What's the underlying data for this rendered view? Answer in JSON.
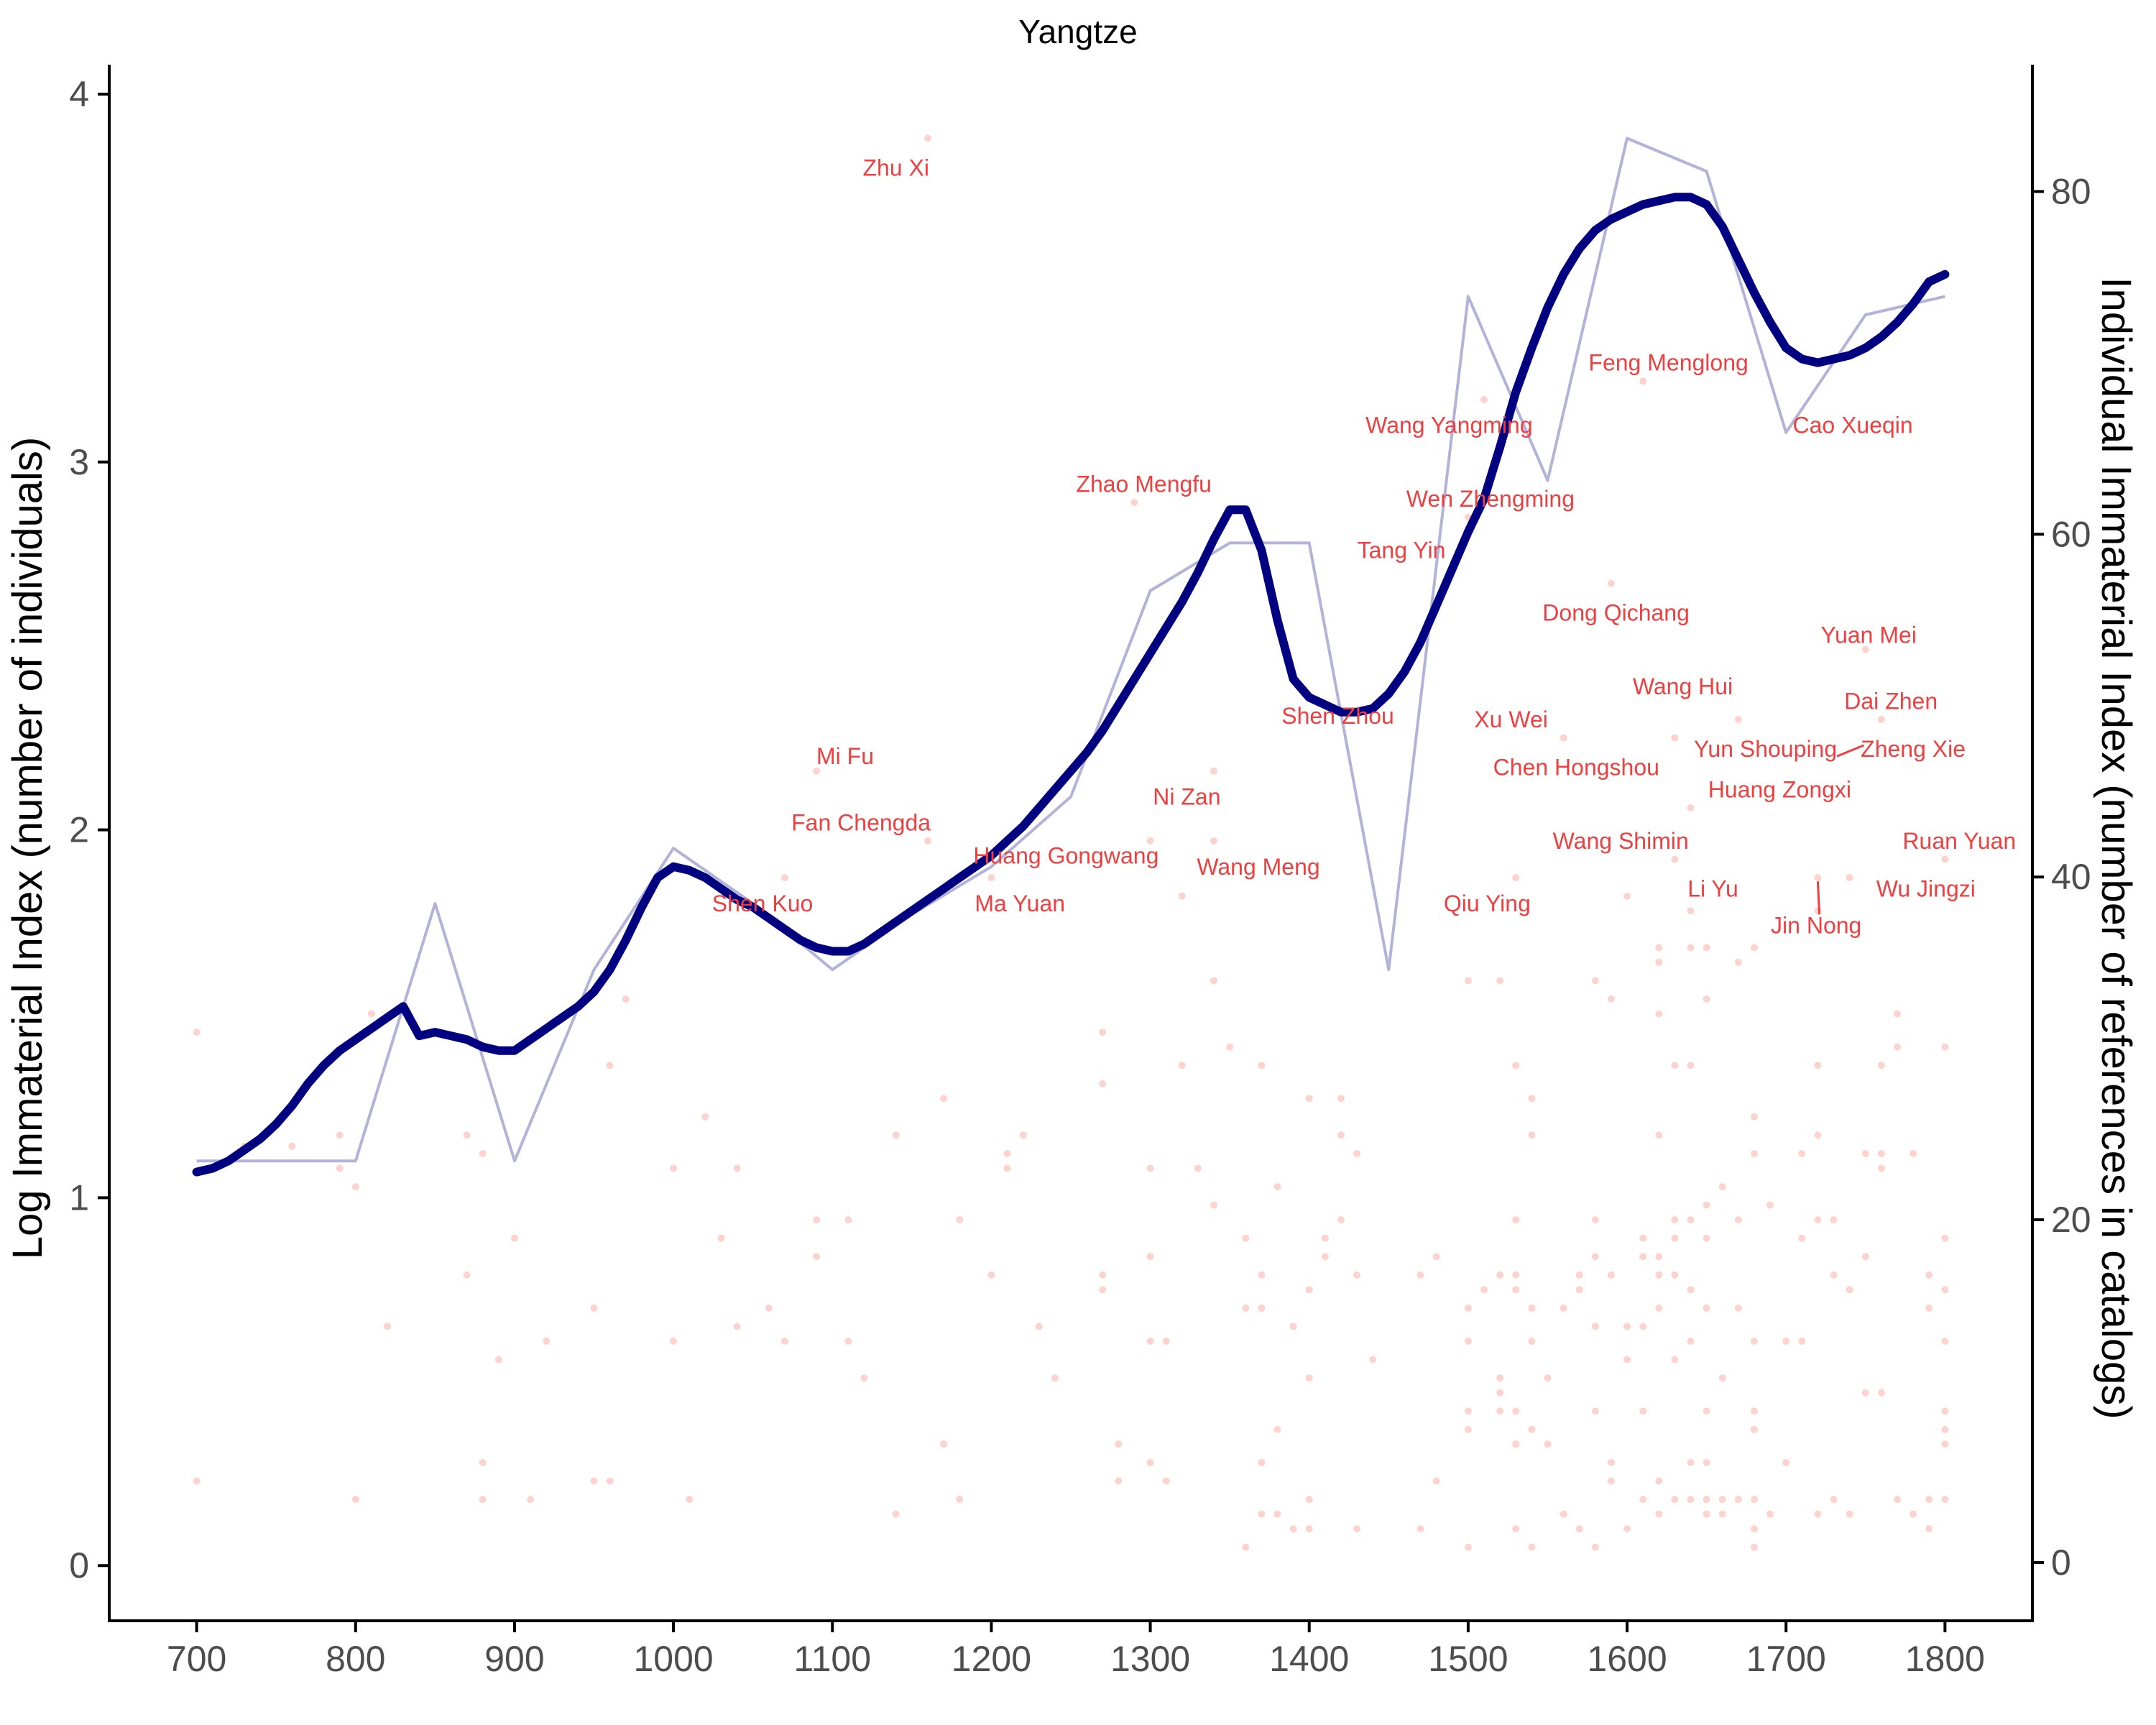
{
  "chart_data": {
    "type": "line",
    "title": "Yangtze",
    "xlabel": "",
    "ylabel": "Log Immaterial Index (number of individuals)",
    "y2label": "Individual Immaterial Index (number of references in catalogs)",
    "xlim": [
      645,
      1855
    ],
    "ylim": [
      -0.15,
      4.08
    ],
    "y2lim": [
      -3.4,
      87.4
    ],
    "x_ticks": [
      700,
      800,
      900,
      1000,
      1100,
      1200,
      1300,
      1400,
      1500,
      1600,
      1700,
      1800
    ],
    "y_ticks": [
      0,
      1,
      2,
      3,
      4
    ],
    "y2_ticks": [
      0,
      20,
      40,
      60,
      80
    ],
    "grid": false,
    "colors": {
      "smooth_line": "#000080",
      "raw_line": "#b3b3d9",
      "points": "#fa8072",
      "labels": "#ee4040",
      "axis": "#000000"
    },
    "series": [
      {
        "name": "",
        "style": "raw",
        "x": [
          700,
          750,
          800,
          850,
          900,
          950,
          1000,
          1050,
          1100,
          1150,
          1200,
          1250,
          1300,
          1350,
          1400,
          1450,
          1500,
          1550,
          1600,
          1650,
          1700,
          1750,
          1800
        ],
        "y": [
          1.1,
          1.1,
          1.1,
          1.8,
          1.1,
          1.62,
          1.95,
          1.8,
          1.62,
          1.77,
          1.9,
          2.09,
          2.65,
          2.78,
          2.78,
          1.62,
          3.45,
          2.95,
          3.88,
          3.79,
          3.08,
          3.4,
          3.45
        ]
      },
      {
        "name": "",
        "style": "smooth",
        "x": [
          700,
          710,
          720,
          730,
          740,
          750,
          760,
          770,
          780,
          790,
          800,
          810,
          820,
          830,
          840,
          850,
          860,
          870,
          880,
          890,
          900,
          910,
          920,
          930,
          940,
          950,
          960,
          970,
          980,
          990,
          1000,
          1010,
          1020,
          1030,
          1040,
          1050,
          1060,
          1070,
          1080,
          1090,
          1100,
          1110,
          1120,
          1130,
          1140,
          1150,
          1160,
          1170,
          1180,
          1190,
          1200,
          1210,
          1220,
          1230,
          1240,
          1250,
          1260,
          1270,
          1280,
          1290,
          1300,
          1310,
          1320,
          1330,
          1340,
          1350,
          1360,
          1370,
          1380,
          1390,
          1400,
          1410,
          1420,
          1430,
          1440,
          1450,
          1460,
          1470,
          1480,
          1490,
          1500,
          1510,
          1520,
          1530,
          1540,
          1550,
          1560,
          1570,
          1580,
          1590,
          1600,
          1610,
          1620,
          1630,
          1640,
          1650,
          1660,
          1670,
          1680,
          1690,
          1700,
          1710,
          1720,
          1730,
          1740,
          1750,
          1760,
          1770,
          1780,
          1790,
          1800
        ],
        "y": [
          1.07,
          1.08,
          1.1,
          1.13,
          1.16,
          1.2,
          1.25,
          1.31,
          1.36,
          1.4,
          1.43,
          1.46,
          1.49,
          1.52,
          1.44,
          1.45,
          1.44,
          1.43,
          1.41,
          1.4,
          1.4,
          1.43,
          1.46,
          1.49,
          1.52,
          1.56,
          1.62,
          1.7,
          1.79,
          1.87,
          1.9,
          1.89,
          1.87,
          1.84,
          1.81,
          1.79,
          1.76,
          1.73,
          1.7,
          1.68,
          1.67,
          1.67,
          1.69,
          1.72,
          1.75,
          1.78,
          1.81,
          1.84,
          1.87,
          1.9,
          1.93,
          1.97,
          2.01,
          2.06,
          2.11,
          2.16,
          2.21,
          2.27,
          2.34,
          2.41,
          2.48,
          2.55,
          2.62,
          2.7,
          2.79,
          2.87,
          2.87,
          2.76,
          2.57,
          2.41,
          2.36,
          2.34,
          2.32,
          2.32,
          2.33,
          2.37,
          2.43,
          2.51,
          2.61,
          2.71,
          2.81,
          2.9,
          3.04,
          3.19,
          3.31,
          3.42,
          3.51,
          3.58,
          3.63,
          3.66,
          3.68,
          3.7,
          3.71,
          3.72,
          3.72,
          3.7,
          3.64,
          3.55,
          3.46,
          3.38,
          3.31,
          3.28,
          3.27,
          3.28,
          3.29,
          3.31,
          3.34,
          3.38,
          3.43,
          3.49,
          3.51
        ]
      }
    ],
    "annotations": [
      {
        "text": "Zhu Xi",
        "x": 1140,
        "y": 3.8
      },
      {
        "text": "Feng Menglong",
        "x": 1626,
        "y": 3.27
      },
      {
        "text": "Cao Xueqin",
        "x": 1742,
        "y": 3.1
      },
      {
        "text": "Wang Yangming",
        "x": 1488,
        "y": 3.1
      },
      {
        "text": "Zhao Mengfu",
        "x": 1296,
        "y": 2.94
      },
      {
        "text": "Wen Zhengming",
        "x": 1514,
        "y": 2.9
      },
      {
        "text": "Tang Yin",
        "x": 1458,
        "y": 2.76
      },
      {
        "text": "Dong Qichang",
        "x": 1593,
        "y": 2.59
      },
      {
        "text": "Yuan Mei",
        "x": 1752,
        "y": 2.53
      },
      {
        "text": "Wang Hui",
        "x": 1635,
        "y": 2.39
      },
      {
        "text": "Dai Zhen",
        "x": 1766,
        "y": 2.35
      },
      {
        "text": "Shen Zhou",
        "x": 1418,
        "y": 2.31
      },
      {
        "text": "Xu Wei",
        "x": 1527,
        "y": 2.3
      },
      {
        "text": "Mi Fu",
        "x": 1108,
        "y": 2.2
      },
      {
        "text": "Yun Shouping",
        "x": 1687,
        "y": 2.22
      },
      {
        "text": "Zheng Xie",
        "x": 1780,
        "y": 2.22
      },
      {
        "text": "Chen Hongshou",
        "x": 1568,
        "y": 2.17
      },
      {
        "text": "Huang Zongxi",
        "x": 1696,
        "y": 2.11
      },
      {
        "text": "Ni Zan",
        "x": 1323,
        "y": 2.09
      },
      {
        "text": "Fan Chengda",
        "x": 1118,
        "y": 2.02
      },
      {
        "text": "Wang Shimin",
        "x": 1596,
        "y": 1.97
      },
      {
        "text": "Ruan Yuan",
        "x": 1809,
        "y": 1.97
      },
      {
        "text": "Huang Gongwang",
        "x": 1247,
        "y": 1.93
      },
      {
        "text": "Wang Meng",
        "x": 1368,
        "y": 1.9
      },
      {
        "text": "Li Yu",
        "x": 1654,
        "y": 1.84
      },
      {
        "text": "Wu Jingzi",
        "x": 1788,
        "y": 1.84
      },
      {
        "text": "Shen Kuo",
        "x": 1056,
        "y": 1.8
      },
      {
        "text": "Ma Yuan",
        "x": 1218,
        "y": 1.8
      },
      {
        "text": "Qiu Ying",
        "x": 1512,
        "y": 1.8
      },
      {
        "text": "Jin Nong",
        "x": 1719,
        "y": 1.74
      }
    ],
    "points_rows": [
      [
        700,
        1.45,
        0.23
      ],
      [
        730,
        1.14
      ],
      [
        760,
        1.14
      ],
      [
        790,
        1.17,
        1.08
      ],
      [
        800,
        1.03,
        0.18
      ],
      [
        810,
        1.5
      ],
      [
        820,
        0.65
      ],
      [
        870,
        1.17,
        0.79
      ],
      [
        880,
        1.12,
        0.28,
        0.18
      ],
      [
        890,
        0.56
      ],
      [
        900,
        0.89
      ],
      [
        910,
        0.18
      ],
      [
        920,
        0.61
      ],
      [
        950,
        0.7,
        0.23
      ],
      [
        960,
        1.36,
        0.23
      ],
      [
        970,
        1.54
      ],
      [
        1000,
        1.08,
        0.61
      ],
      [
        1010,
        0.18
      ],
      [
        1020,
        1.22
      ],
      [
        1030,
        0.89
      ],
      [
        1040,
        1.08,
        0.65
      ],
      [
        1060,
        0.7
      ],
      [
        1070,
        1.87,
        0.61
      ],
      [
        1090,
        2.16,
        0.94,
        0.84
      ],
      [
        1110,
        0.94,
        0.61
      ],
      [
        1120,
        0.51
      ],
      [
        1140,
        1.17,
        0.14
      ],
      [
        1160,
        3.88,
        1.97
      ],
      [
        1170,
        1.27,
        0.33
      ],
      [
        1180,
        0.94,
        0.18
      ],
      [
        1200,
        1.87,
        0.79
      ],
      [
        1210,
        1.12,
        1.08
      ],
      [
        1220,
        1.17
      ],
      [
        1230,
        0.65
      ],
      [
        1240,
        0.51
      ],
      [
        1270,
        1.45,
        1.31,
        0.79,
        0.75
      ],
      [
        1280,
        0.33,
        0.23
      ],
      [
        1290,
        2.89
      ],
      [
        1300,
        1.97,
        1.08,
        0.84,
        0.61,
        0.28
      ],
      [
        1310,
        0.61,
        0.23
      ],
      [
        1320,
        1.82,
        1.36
      ],
      [
        1330,
        1.08
      ],
      [
        1340,
        2.16,
        1.97,
        1.59,
        0.98
      ],
      [
        1350,
        1.41
      ],
      [
        1360,
        0.89,
        0.7,
        0.05
      ],
      [
        1370,
        1.36,
        0.79,
        0.7,
        0.28,
        0.14
      ],
      [
        1380,
        1.03,
        0.37,
        0.14
      ],
      [
        1390,
        0.65,
        0.1
      ],
      [
        1400,
        1.27,
        0.75,
        0.51,
        0.18,
        0.1
      ],
      [
        1410,
        0.89,
        0.84
      ],
      [
        1420,
        1.27,
        1.17,
        0.94
      ],
      [
        1430,
        1.12,
        0.79,
        0.1
      ],
      [
        1440,
        0.56
      ],
      [
        1470,
        0.79,
        0.1
      ],
      [
        1480,
        0.84,
        0.23
      ],
      [
        1500,
        2.85,
        1.59,
        0.7,
        0.61,
        0.42,
        0.37,
        0.05
      ],
      [
        1510,
        3.17,
        0.75
      ],
      [
        1520,
        1.59,
        0.79,
        0.51,
        0.47,
        0.42
      ],
      [
        1530,
        1.87,
        1.36,
        0.94,
        0.79,
        0.75,
        0.42,
        0.33,
        0.1
      ],
      [
        1540,
        1.27,
        1.17,
        0.7,
        0.61,
        0.37,
        0.05
      ],
      [
        1550,
        0.51,
        0.33
      ],
      [
        1560,
        2.25,
        0.7,
        0.14
      ],
      [
        1570,
        0.79,
        0.75,
        0.1
      ],
      [
        1580,
        1.59,
        0.94,
        0.84,
        0.65,
        0.42,
        0.05
      ],
      [
        1590,
        2.67,
        1.54,
        0.79,
        0.28,
        0.23
      ],
      [
        1600,
        1.82,
        0.65,
        0.56,
        0.1
      ],
      [
        1610,
        3.22,
        0.89,
        0.84,
        0.65,
        0.42,
        0.18
      ],
      [
        1620,
        1.68,
        1.64,
        1.5,
        1.17,
        0.84,
        0.79,
        0.7,
        0.23,
        0.14
      ],
      [
        1630,
        2.25,
        1.92,
        1.36,
        0.94,
        0.89,
        0.79,
        0.56,
        0.18
      ],
      [
        1640,
        2.06,
        1.78,
        1.68,
        1.36,
        0.94,
        0.75,
        0.61,
        0.28,
        0.18
      ],
      [
        1650,
        1.68,
        1.54,
        0.98,
        0.89,
        0.7,
        0.42,
        0.28,
        0.18,
        0.14
      ],
      [
        1660,
        1.03,
        0.51,
        0.18,
        0.14
      ],
      [
        1670,
        2.3,
        1.64,
        0.94,
        0.7,
        0.18
      ],
      [
        1680,
        1.68,
        1.22,
        1.12,
        0.61,
        0.42,
        0.37,
        0.18,
        0.1,
        0.05
      ],
      [
        1690,
        0.98,
        0.14
      ],
      [
        1700,
        0.61,
        0.28
      ],
      [
        1710,
        1.12,
        0.89,
        0.61
      ],
      [
        1720,
        1.87,
        1.78,
        1.36,
        1.17,
        0.94,
        0.14
      ],
      [
        1730,
        0.94,
        0.79,
        0.18
      ],
      [
        1740,
        1.87,
        0.75,
        0.14
      ],
      [
        1750,
        2.49,
        1.12,
        0.84,
        0.47
      ],
      [
        1760,
        2.3,
        1.36,
        1.12,
        1.08,
        0.47
      ],
      [
        1770,
        1.5,
        1.41,
        0.18
      ],
      [
        1780,
        1.12,
        0.14
      ],
      [
        1790,
        0.79,
        0.7,
        0.18,
        0.1
      ],
      [
        1800,
        1.92,
        1.41,
        0.89,
        0.75,
        0.61,
        0.42,
        0.37,
        0.33,
        0.18
      ]
    ]
  }
}
